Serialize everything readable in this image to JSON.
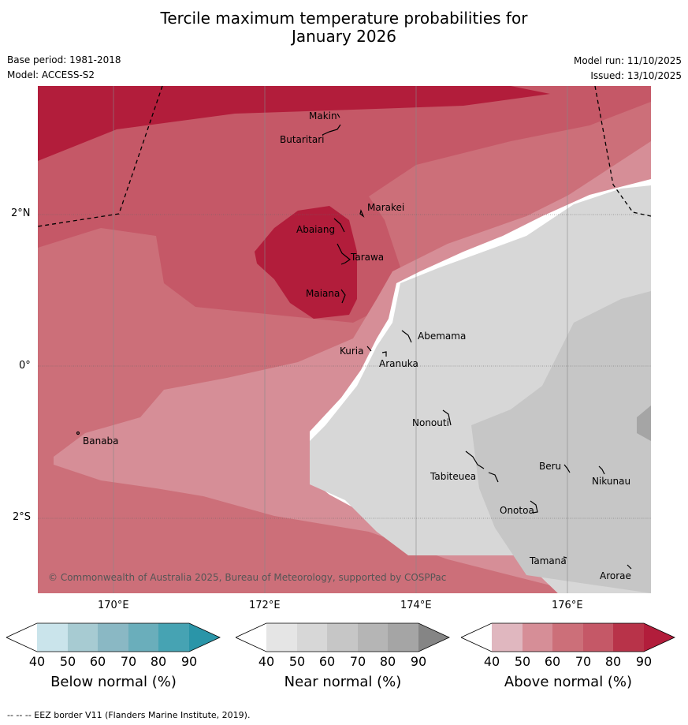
{
  "title": {
    "line1": "Tercile maximum temperature probabilities for",
    "line2": "January 2026"
  },
  "meta": {
    "base_period": "Base period: 1981-2018",
    "model": "Model: ACCESS-S2",
    "model_run": "Model run: 11/10/2025",
    "issued": "Issued: 13/10/2025"
  },
  "map": {
    "lat_labels": [
      "2°N",
      "0°",
      "2°S"
    ],
    "lon_labels": [
      "170°E",
      "172°E",
      "174°E",
      "176°E"
    ],
    "places": [
      "Makin",
      "Butaritari",
      "Marakei",
      "Abaiang",
      "Tarawa",
      "Maiana",
      "Abemama",
      "Kuria",
      "Aranuka",
      "Banaba",
      "Nonouti",
      "Beru",
      "Tabiteuea",
      "Nikunau",
      "Onotoa",
      "Tamana",
      "Arorae"
    ],
    "copyright": "© Commonwealth of Australia 2025, Bureau of Meteorology, supported by COSPPac"
  },
  "legend": {
    "ticks": [
      "40",
      "50",
      "60",
      "70",
      "80",
      "90"
    ],
    "below": {
      "label": "Below normal (%)",
      "colors": [
        "#ffffff",
        "#cae4eb",
        "#a7cbd2",
        "#8ab8c4",
        "#6aaebb",
        "#46a3b3",
        "#2a95a8"
      ]
    },
    "near": {
      "label": "Near normal (%)",
      "colors": [
        "#ffffff",
        "#e5e5e5",
        "#d7d7d7",
        "#c6c6c6",
        "#b5b5b5",
        "#a5a5a5",
        "#858585"
      ]
    },
    "above": {
      "label": "Above normal (%)",
      "colors": [
        "#ffffff",
        "#e0b7bf",
        "#d68e97",
        "#cc6f79",
        "#c55867",
        "#b83349",
        "#b21d3b"
      ]
    }
  },
  "footer": "--  --  -- EEZ border V11 (Flanders Marine Institute, 2019)."
}
